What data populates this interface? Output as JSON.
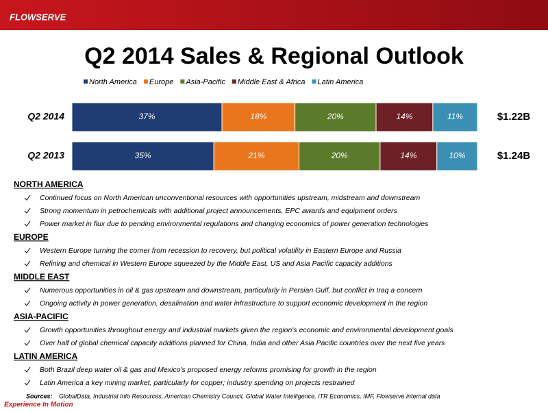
{
  "logo": "FLOWSERVE",
  "chart_data": {
    "type": "stacked-bar-horizontal",
    "title": "Q2 2014 Sales & Regional Outlook",
    "categories": [
      "Q2 2014",
      "Q2 2013"
    ],
    "xlim": [
      0,
      100
    ],
    "legend": "top",
    "series": [
      {
        "name": "North America",
        "color": "#1f3d72",
        "values": [
          37,
          35
        ],
        "value_labels": [
          "37%",
          "35%"
        ]
      },
      {
        "name": "Europe",
        "color": "#e8761c",
        "values": [
          18,
          21
        ],
        "value_labels": [
          "18%",
          "21%"
        ]
      },
      {
        "name": "Asia-Pacific",
        "color": "#5b7b2b",
        "values": [
          20,
          20
        ],
        "value_labels": [
          "20%",
          "20%"
        ]
      },
      {
        "name": "Middle East & Africa",
        "color": "#6e2124",
        "values": [
          14,
          14
        ],
        "value_labels": [
          "14%",
          "14%"
        ]
      },
      {
        "name": "Latin America",
        "color": "#3a8fb3",
        "values": [
          11,
          10
        ],
        "value_labels": [
          "11%",
          "10%"
        ]
      }
    ],
    "annotations": [
      "$1.22B",
      "$1.24B"
    ]
  },
  "sections": [
    {
      "heading": "NORTH AMERICA",
      "bullets": [
        "Continued focus on North American unconventional resources with opportunities upstream, midstream and downstream",
        "Strong momentum in petrochemicals with additional project announcements, EPC awards and equipment orders",
        "Power market in flux due to pending environmental regulations and changing economics of power generation technologies"
      ]
    },
    {
      "heading": "EUROPE",
      "bullets": [
        "Western Europe turning the corner from recession to recovery, but political volatility in Eastern Europe and Russia",
        "Refining and chemical in Western Europe squeezed by the Middle East, US and Asia Pacific capacity additions"
      ]
    },
    {
      "heading": "MIDDLE EAST",
      "bullets": [
        "Numerous opportunities in oil & gas upstream and downstream, particularly in Persian Gulf, but conflict in Iraq a concern",
        "Ongoing activity in power generation, desalination and water infrastructure to support economic development in the region"
      ]
    },
    {
      "heading": "ASIA-PACIFIC",
      "bullets": [
        "Growth opportunities throughout energy and industrial markets given the region's economic and environmental development goals",
        "Over half of global chemical capacity additions planned for China, India and other Asia Pacific countries over the next five years"
      ]
    },
    {
      "heading": "LATIN AMERICA",
      "bullets": [
        "Both Brazil deep water oil & gas and Mexico's proposed energy reforms promising for growth in the region",
        "Latin America a key mining market, particularly for copper; industry spending on projects restrained"
      ]
    }
  ],
  "sources": {
    "label": "Sources:",
    "text": "GlobalData, Industrial Info Resources, American Chemistry Council, Global Water Intelligence, ITR Economics, IMF, Flowserve internal data"
  },
  "tagline": "Experience In Motion"
}
